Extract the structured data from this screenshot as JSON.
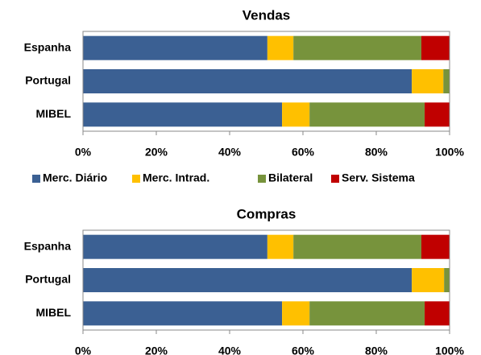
{
  "chart_data": [
    {
      "type": "stacked-bar-horizontal",
      "title": "Vendas",
      "categories": [
        "Espanha",
        "Portugal",
        "MIBEL"
      ],
      "series": [
        {
          "name": "Merc. Diário",
          "color": "#3b6093",
          "values": [
            50.3,
            89.7,
            54.3
          ]
        },
        {
          "name": "Merc. Intrad.",
          "color": "#ffc000",
          "values": [
            7.1,
            8.6,
            7.5
          ]
        },
        {
          "name": "Bilateral",
          "color": "#77933c",
          "values": [
            34.9,
            1.7,
            31.4
          ]
        },
        {
          "name": "Serv. Sistema",
          "color": "#c00000",
          "values": [
            7.7,
            0,
            6.8
          ]
        }
      ],
      "xlim": [
        0,
        100
      ],
      "xticks": [
        {
          "value": 0,
          "label": "0%"
        },
        {
          "value": 20,
          "label": "20%"
        },
        {
          "value": 40,
          "label": "40%"
        },
        {
          "value": 60,
          "label": "60%"
        },
        {
          "value": 80,
          "label": "80%"
        },
        {
          "value": 100,
          "label": "100%"
        }
      ],
      "legend": "bottom"
    },
    {
      "type": "stacked-bar-horizontal",
      "title": "Compras",
      "categories": [
        "Espanha",
        "Portugal",
        "MIBEL"
      ],
      "series": [
        {
          "color": "#3b6093",
          "values": [
            50.3,
            89.7,
            54.3
          ]
        },
        {
          "color": "#ffc000",
          "values": [
            7.1,
            8.8,
            7.5
          ]
        },
        {
          "color": "#77933c",
          "values": [
            34.9,
            1.5,
            31.4
          ]
        },
        {
          "color": "#c00000",
          "values": [
            7.7,
            0,
            6.8
          ]
        }
      ],
      "xlim": [
        0,
        100
      ],
      "xticks": [
        {
          "value": 0,
          "label": "0%"
        },
        {
          "value": 20,
          "label": "20%"
        },
        {
          "value": 40,
          "label": "40%"
        },
        {
          "value": 60,
          "label": "60%"
        },
        {
          "value": 80,
          "label": "80%"
        },
        {
          "value": 100,
          "label": "100%"
        }
      ]
    }
  ]
}
